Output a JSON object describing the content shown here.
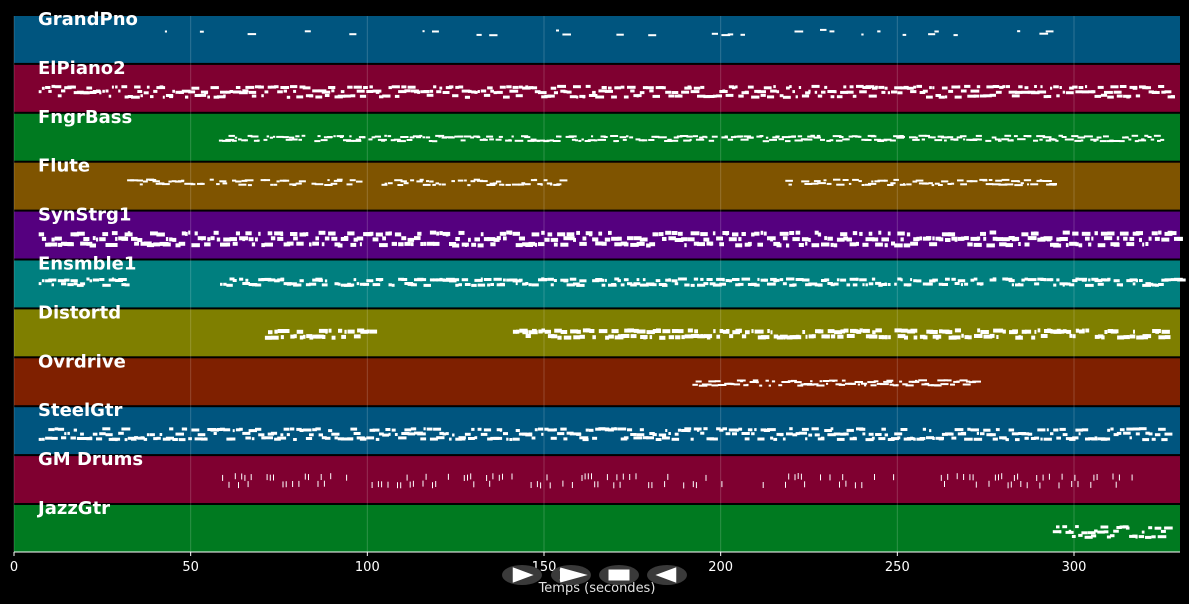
{
  "tracks": [
    {
      "name": "GrandPno",
      "color": "#00557f",
      "density": 0.08,
      "start": 40,
      "end": 295,
      "height": 2,
      "gaps": []
    },
    {
      "name": "ElPiano2",
      "color": "#7f0030",
      "density": 1.0,
      "start": 7,
      "end": 328,
      "height": 3,
      "gaps": []
    },
    {
      "name": "FngrBass",
      "color": "#007a20",
      "density": 0.9,
      "start": 58,
      "end": 325,
      "height": 2,
      "gaps": []
    },
    {
      "name": "Flute",
      "color": "#7f5400",
      "density": 0.7,
      "start": 32,
      "end": 295,
      "height": 2,
      "gaps": [
        [
          97,
          102
        ],
        [
          155,
          218
        ]
      ]
    },
    {
      "name": "SynStrg1",
      "color": "#55007f",
      "density": 1.0,
      "start": 7,
      "end": 330,
      "height": 4,
      "gaps": []
    },
    {
      "name": "Ensmble1",
      "color": "#007f7f",
      "density": 0.9,
      "start": 7,
      "end": 330,
      "height": 3,
      "gaps": [
        [
          32,
          58
        ]
      ]
    },
    {
      "name": "Distortd",
      "color": "#7f7f00",
      "density": 0.9,
      "start": 71,
      "end": 326,
      "height": 4,
      "gaps": [
        [
          101,
          141
        ]
      ]
    },
    {
      "name": "Ovrdrive",
      "color": "#7f2000",
      "density": 0.9,
      "start": 192,
      "end": 272,
      "height": 2,
      "gaps": []
    },
    {
      "name": "SteelGtr",
      "color": "#00557f",
      "density": 1.0,
      "start": 7,
      "end": 326,
      "height": 3,
      "gaps": []
    },
    {
      "name": "GM Drums",
      "color": "#7f0030",
      "density": 0.5,
      "start": 58,
      "end": 318,
      "height": 6,
      "gaps": []
    },
    {
      "name": "JazzGtr",
      "color": "#007a20",
      "density": 1.0,
      "start": 294,
      "end": 326,
      "height": 3,
      "gaps": []
    }
  ],
  "axis": {
    "xlabel": "Temps (secondes)",
    "xlim": [
      0,
      330
    ],
    "ticks": [
      0,
      50,
      100,
      150,
      200,
      250,
      300
    ]
  },
  "controls": [
    {
      "name": "play-icon",
      "label": "play"
    },
    {
      "name": "forward-icon",
      "label": "forward"
    },
    {
      "name": "stop-icon",
      "label": "stop"
    },
    {
      "name": "back-icon",
      "label": "back"
    }
  ]
}
